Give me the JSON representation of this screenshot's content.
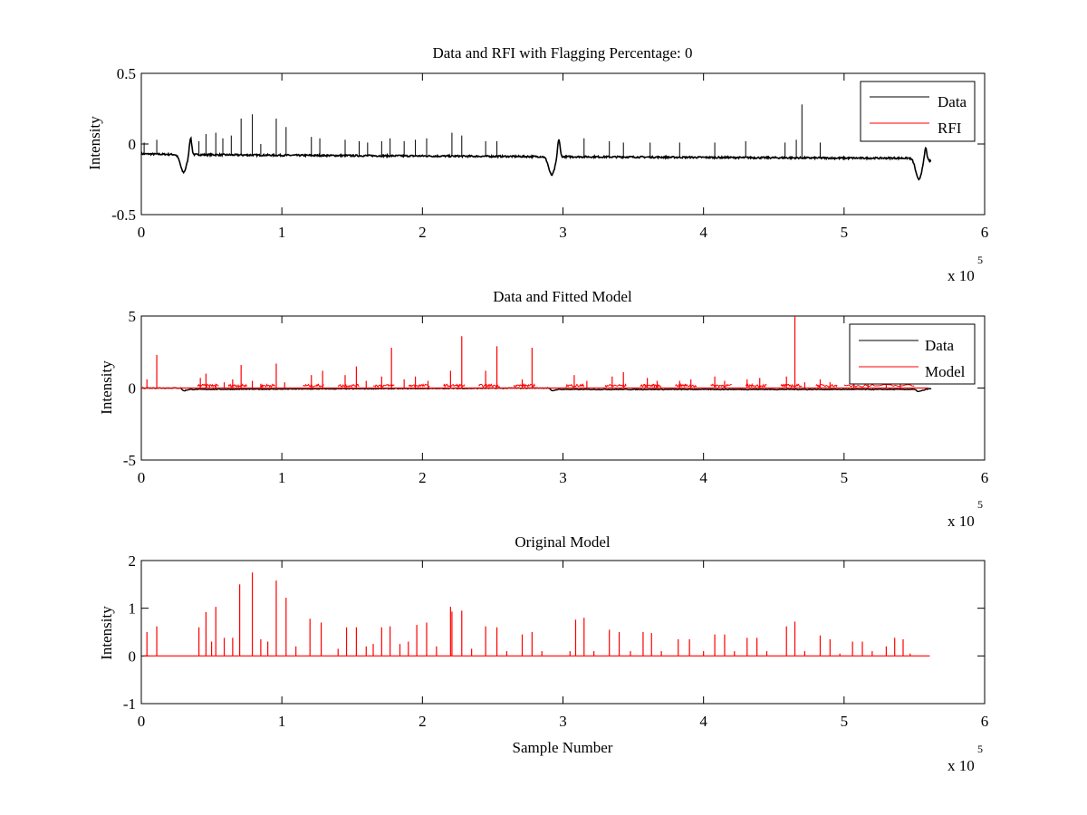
{
  "figure": {
    "background": "#ffffff",
    "axis_color": "#000000"
  },
  "chart_data": [
    {
      "type": "line",
      "title": "Data and RFI with Flagging Percentage: 0",
      "xlabel": "",
      "ylabel": "Intensity",
      "xlim": [
        0,
        6
      ],
      "ylim": [
        -0.5,
        0.5
      ],
      "x_ticks": [
        0,
        1,
        2,
        3,
        4,
        5,
        6
      ],
      "y_ticks": [
        -0.5,
        0,
        0.5
      ],
      "y_tick_labels": [
        "-0.5",
        "0",
        "0.5"
      ],
      "x_exponent": "x 10",
      "x_exponent_power": "5",
      "x_units_note": "x values in units of 10^5 samples",
      "legend": {
        "location": "top-right",
        "entries": [
          "Data",
          "RFI"
        ]
      },
      "series": [
        {
          "name": "Data",
          "color": "#000000",
          "baseline": [
            [
              0.0,
              -0.07
            ],
            [
              0.3,
              -0.075
            ],
            [
              1.0,
              -0.08
            ],
            [
              2.0,
              -0.085
            ],
            [
              3.0,
              -0.09
            ],
            [
              4.0,
              -0.095
            ],
            [
              5.0,
              -0.1
            ],
            [
              5.5,
              -0.1
            ],
            [
              5.6,
              -0.12
            ]
          ],
          "dips": [
            [
              0.3,
              -0.2
            ],
            [
              2.92,
              -0.22
            ],
            [
              5.53,
              -0.25
            ]
          ],
          "overshoots": [
            [
              0.35,
              0.05
            ],
            [
              2.97,
              0.04
            ],
            [
              5.58,
              -0.02
            ]
          ],
          "spikes": [
            [
              0.02,
              0.01
            ],
            [
              0.11,
              0.03
            ],
            [
              0.41,
              0.02
            ],
            [
              0.46,
              0.07
            ],
            [
              0.53,
              0.08
            ],
            [
              0.58,
              0.04
            ],
            [
              0.64,
              0.06
            ],
            [
              0.71,
              0.18
            ],
            [
              0.79,
              0.21
            ],
            [
              0.85,
              0.0
            ],
            [
              0.96,
              0.18
            ],
            [
              1.03,
              0.12
            ],
            [
              1.21,
              0.05
            ],
            [
              1.27,
              0.04
            ],
            [
              1.45,
              0.03
            ],
            [
              1.55,
              0.02
            ],
            [
              1.61,
              0.01
            ],
            [
              1.71,
              0.02
            ],
            [
              1.77,
              0.04
            ],
            [
              1.87,
              0.02
            ],
            [
              1.95,
              0.03
            ],
            [
              2.03,
              0.04
            ],
            [
              2.21,
              0.08
            ],
            [
              2.28,
              0.06
            ],
            [
              2.45,
              0.02
            ],
            [
              2.53,
              0.02
            ],
            [
              3.15,
              0.04
            ],
            [
              3.33,
              0.02
            ],
            [
              3.43,
              0.01
            ],
            [
              3.62,
              0.01
            ],
            [
              3.83,
              0.01
            ],
            [
              4.08,
              0.01
            ],
            [
              4.3,
              0.02
            ],
            [
              4.58,
              0.01
            ],
            [
              4.66,
              0.03
            ],
            [
              4.7,
              0.28
            ],
            [
              4.83,
              0.01
            ]
          ],
          "rfi_spikes": []
        },
        {
          "name": "RFI",
          "color": "#ff0000",
          "spikes": []
        }
      ]
    },
    {
      "type": "line",
      "title": "Data and Fitted Model",
      "xlabel": "",
      "ylabel": "Intensity",
      "xlim": [
        0,
        6
      ],
      "ylim": [
        -5,
        5
      ],
      "x_ticks": [
        0,
        1,
        2,
        3,
        4,
        5,
        6
      ],
      "y_ticks": [
        -5,
        0,
        5
      ],
      "y_tick_labels": [
        "-5",
        "0",
        "5"
      ],
      "x_exponent": "x 10",
      "x_exponent_power": "5",
      "legend": {
        "location": "top-right",
        "entries": [
          "Data",
          "Model"
        ]
      },
      "series": [
        {
          "name": "Data",
          "color": "#000000",
          "baseline": [
            [
              0.0,
              0.0
            ],
            [
              0.28,
              0.0
            ],
            [
              0.3,
              -0.2
            ],
            [
              0.34,
              -0.1
            ],
            [
              2.9,
              0.0
            ],
            [
              2.92,
              -0.2
            ],
            [
              2.96,
              -0.1
            ],
            [
              5.5,
              -0.1
            ],
            [
              5.53,
              -0.25
            ],
            [
              5.6,
              -0.05
            ]
          ],
          "spikes": []
        },
        {
          "name": "Model",
          "color": "#ff0000",
          "spikes": [
            [
              0.04,
              0.6
            ],
            [
              0.11,
              2.3
            ],
            [
              0.42,
              0.7
            ],
            [
              0.46,
              1.0
            ],
            [
              0.53,
              0.3
            ],
            [
              0.59,
              0.4
            ],
            [
              0.65,
              0.6
            ],
            [
              0.71,
              1.6
            ],
            [
              0.79,
              0.5
            ],
            [
              0.85,
              0.3
            ],
            [
              0.96,
              1.7
            ],
            [
              1.02,
              0.4
            ],
            [
              1.21,
              0.9
            ],
            [
              1.29,
              1.2
            ],
            [
              1.45,
              0.9
            ],
            [
              1.53,
              1.5
            ],
            [
              1.6,
              0.5
            ],
            [
              1.71,
              0.8
            ],
            [
              1.78,
              2.8
            ],
            [
              1.87,
              0.6
            ],
            [
              1.95,
              0.8
            ],
            [
              2.04,
              0.5
            ],
            [
              2.2,
              1.2
            ],
            [
              2.28,
              3.6
            ],
            [
              2.45,
              1.2
            ],
            [
              2.53,
              2.9
            ],
            [
              2.71,
              0.6
            ],
            [
              2.78,
              2.8
            ],
            [
              3.08,
              0.9
            ],
            [
              3.17,
              0.5
            ],
            [
              3.35,
              0.8
            ],
            [
              3.43,
              1.1
            ],
            [
              3.6,
              0.7
            ],
            [
              3.67,
              0.5
            ],
            [
              3.83,
              0.5
            ],
            [
              3.91,
              0.6
            ],
            [
              4.08,
              0.8
            ],
            [
              4.15,
              0.5
            ],
            [
              4.31,
              0.6
            ],
            [
              4.4,
              0.7
            ],
            [
              4.59,
              0.8
            ],
            [
              4.65,
              5.0
            ],
            [
              4.72,
              0.4
            ],
            [
              4.83,
              0.6
            ],
            [
              4.9,
              0.4
            ],
            [
              5.07,
              0.3
            ],
            [
              5.17,
              0.3
            ],
            [
              5.3,
              0.3
            ],
            [
              5.4,
              0.3
            ]
          ],
          "bumps": [
            [
              0.4,
              0.55
            ],
            [
              0.62,
              0.75
            ],
            [
              0.85,
              0.95
            ],
            [
              1.15,
              1.3
            ],
            [
              1.4,
              1.55
            ],
            [
              1.65,
              1.8
            ],
            [
              1.9,
              2.05
            ],
            [
              2.15,
              2.3
            ],
            [
              2.4,
              2.55
            ],
            [
              2.65,
              2.8
            ],
            [
              3.02,
              3.15
            ],
            [
              3.3,
              3.45
            ],
            [
              3.55,
              3.7
            ],
            [
              3.8,
              3.95
            ],
            [
              4.05,
              4.2
            ],
            [
              4.3,
              4.45
            ],
            [
              4.55,
              4.7
            ],
            [
              4.8,
              4.95
            ],
            [
              5.0,
              5.5
            ]
          ]
        }
      ]
    },
    {
      "type": "line",
      "title": "Original Model",
      "xlabel": "Sample Number",
      "ylabel": "Intensity",
      "xlim": [
        0,
        6
      ],
      "ylim": [
        -1,
        2
      ],
      "x_ticks": [
        0,
        1,
        2,
        3,
        4,
        5,
        6
      ],
      "y_ticks": [
        -1,
        0,
        1,
        2
      ],
      "y_tick_labels": [
        "-1",
        "0",
        "1",
        "2"
      ],
      "x_exponent": "x 10",
      "x_exponent_power": "5",
      "series": [
        {
          "name": "",
          "color": "#ff0000",
          "x_range": [
            0.02,
            5.61
          ],
          "spikes": [
            [
              0.04,
              0.5
            ],
            [
              0.11,
              0.62
            ],
            [
              0.41,
              0.6
            ],
            [
              0.46,
              0.92
            ],
            [
              0.5,
              0.3
            ],
            [
              0.53,
              1.03
            ],
            [
              0.59,
              0.38
            ],
            [
              0.65,
              0.38
            ],
            [
              0.7,
              1.5
            ],
            [
              0.79,
              1.75
            ],
            [
              0.85,
              0.35
            ],
            [
              0.9,
              0.3
            ],
            [
              0.96,
              1.58
            ],
            [
              1.03,
              1.22
            ],
            [
              1.1,
              0.2
            ],
            [
              1.2,
              0.78
            ],
            [
              1.28,
              0.7
            ],
            [
              1.4,
              0.15
            ],
            [
              1.46,
              0.6
            ],
            [
              1.53,
              0.6
            ],
            [
              1.6,
              0.2
            ],
            [
              1.65,
              0.25
            ],
            [
              1.71,
              0.6
            ],
            [
              1.77,
              0.62
            ],
            [
              1.84,
              0.25
            ],
            [
              1.9,
              0.3
            ],
            [
              1.96,
              0.65
            ],
            [
              2.03,
              0.7
            ],
            [
              2.1,
              0.2
            ],
            [
              2.2,
              1.03
            ],
            [
              2.21,
              0.93
            ],
            [
              2.28,
              0.95
            ],
            [
              2.35,
              0.15
            ],
            [
              2.45,
              0.62
            ],
            [
              2.53,
              0.6
            ],
            [
              2.6,
              0.1
            ],
            [
              2.71,
              0.45
            ],
            [
              2.78,
              0.5
            ],
            [
              2.85,
              0.1
            ],
            [
              3.05,
              0.1
            ],
            [
              3.09,
              0.76
            ],
            [
              3.15,
              0.8
            ],
            [
              3.22,
              0.1
            ],
            [
              3.33,
              0.55
            ],
            [
              3.4,
              0.5
            ],
            [
              3.48,
              0.1
            ],
            [
              3.57,
              0.5
            ],
            [
              3.63,
              0.48
            ],
            [
              3.7,
              0.1
            ],
            [
              3.82,
              0.35
            ],
            [
              3.9,
              0.35
            ],
            [
              4.0,
              0.1
            ],
            [
              4.08,
              0.45
            ],
            [
              4.15,
              0.45
            ],
            [
              4.22,
              0.1
            ],
            [
              4.31,
              0.38
            ],
            [
              4.38,
              0.38
            ],
            [
              4.45,
              0.1
            ],
            [
              4.59,
              0.62
            ],
            [
              4.65,
              0.72
            ],
            [
              4.72,
              0.1
            ],
            [
              4.83,
              0.43
            ],
            [
              4.9,
              0.35
            ],
            [
              4.97,
              0.05
            ],
            [
              5.06,
              0.3
            ],
            [
              5.13,
              0.3
            ],
            [
              5.2,
              0.1
            ],
            [
              5.3,
              0.2
            ],
            [
              5.36,
              0.38
            ],
            [
              5.42,
              0.35
            ],
            [
              5.47,
              0.05
            ]
          ]
        }
      ]
    }
  ]
}
